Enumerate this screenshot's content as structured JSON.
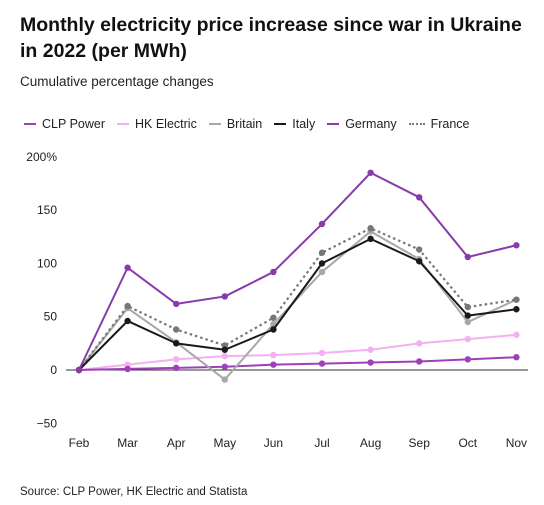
{
  "title": "Monthly electricity price increase since war in Ukraine in 2022 (per MWh)",
  "subtitle": "Cumulative percentage changes",
  "source": "Source: CLP Power, HK Electric and Statista",
  "chart_data": {
    "type": "line",
    "title": "Monthly electricity price increase since war in Ukraine in 2022 (per MWh)",
    "subtitle": "Cumulative percentage changes",
    "categories": [
      "Feb",
      "Mar",
      "Apr",
      "May",
      "Jun",
      "Jul",
      "Aug",
      "Sep",
      "Oct",
      "Nov"
    ],
    "ylim": [
      -50,
      200
    ],
    "yticks": [
      -50,
      0,
      50,
      100,
      150,
      200
    ],
    "ytick_labels": [
      "−50",
      "0",
      "50",
      "100",
      "150",
      "200%"
    ],
    "grid": false,
    "legend_position": "top",
    "series": [
      {
        "name": "CLP Power",
        "color": "#a040b8",
        "dash": "solid",
        "values": [
          0,
          1,
          2,
          3,
          5,
          6,
          7,
          8,
          10,
          12
        ]
      },
      {
        "name": "HK Electric",
        "color": "#f4b0f0",
        "dash": "solid",
        "values": [
          0,
          5,
          10,
          13,
          14,
          16,
          19,
          25,
          29,
          33
        ]
      },
      {
        "name": "Britain",
        "color": "#a8a8a8",
        "dash": "solid",
        "values": [
          0,
          58,
          26,
          -9,
          43,
          92,
          130,
          104,
          45,
          66
        ]
      },
      {
        "name": "Italy",
        "color": "#1a1a1a",
        "dash": "solid",
        "values": [
          0,
          46,
          25,
          19,
          38,
          100,
          123,
          102,
          51,
          57
        ]
      },
      {
        "name": "Germany",
        "color": "#8a3bab",
        "dash": "solid",
        "values": [
          0,
          96,
          62,
          69,
          92,
          137,
          185,
          162,
          106,
          117
        ]
      },
      {
        "name": "France",
        "color": "#777777",
        "dash": "dotted",
        "values": [
          0,
          60,
          38,
          23,
          49,
          110,
          133,
          113,
          59,
          66
        ]
      }
    ]
  }
}
